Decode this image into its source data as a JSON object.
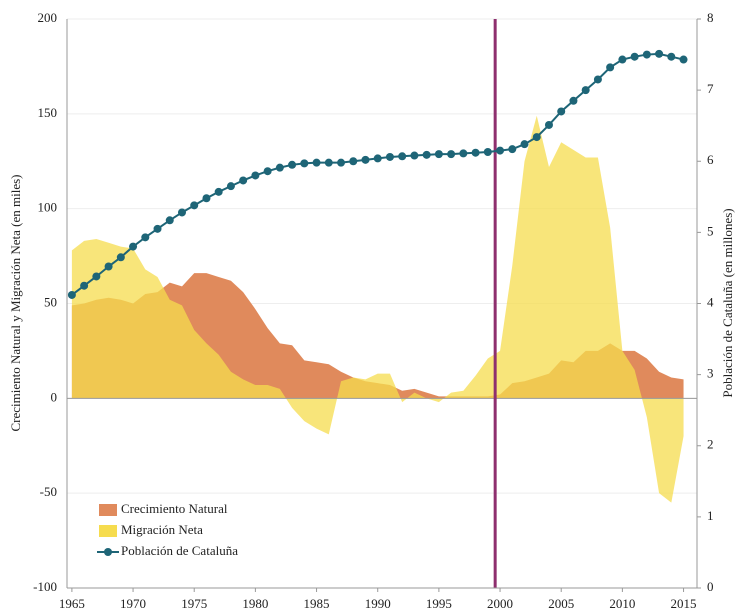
{
  "chart_data": {
    "type": "combo",
    "x": [
      1965,
      1966,
      1967,
      1968,
      1969,
      1970,
      1971,
      1972,
      1973,
      1974,
      1975,
      1976,
      1977,
      1978,
      1979,
      1980,
      1981,
      1982,
      1983,
      1984,
      1985,
      1986,
      1987,
      1988,
      1989,
      1990,
      1991,
      1992,
      1993,
      1994,
      1995,
      1996,
      1997,
      1998,
      1999,
      2000,
      2001,
      2002,
      2003,
      2004,
      2005,
      2006,
      2007,
      2008,
      2009,
      2010,
      2011,
      2012,
      2013,
      2014,
      2015
    ],
    "xlim": [
      1964.6,
      2016.1
    ],
    "xticks": [
      1965,
      1970,
      1975,
      1980,
      1985,
      1990,
      1995,
      2000,
      2005,
      2010,
      2015
    ],
    "ylim": [
      -100,
      200
    ],
    "yticks": [
      -100,
      -50,
      0,
      50,
      100,
      150,
      200
    ],
    "y2lim": [
      0,
      8
    ],
    "y2ticks": [
      0,
      1,
      2,
      3,
      4,
      5,
      6,
      7,
      8
    ],
    "ylabel": "Crecimiento Natural y Migración Neta (en miles)",
    "y2label": "Población de Cataluña (en millones)",
    "grid": true,
    "legend": "lower left",
    "vline": {
      "x": 1999.6,
      "color": "#8e2f6e"
    },
    "series": [
      {
        "name": "Crecimiento Natural",
        "type": "area",
        "color": "#e08a5c",
        "axis": "y",
        "values": [
          49,
          50,
          52,
          53,
          52,
          50,
          55,
          56,
          61,
          59,
          66,
          66,
          64,
          62,
          56,
          47,
          37,
          29,
          28,
          20,
          19,
          18,
          14,
          11,
          9,
          8,
          7,
          4,
          5,
          3,
          1,
          1,
          1,
          1,
          1,
          2,
          8,
          9,
          11,
          13,
          20,
          19,
          25,
          25,
          29,
          25,
          25,
          21,
          14,
          11,
          10
        ]
      },
      {
        "name": "Migración Neta",
        "type": "area",
        "color": "#f6dc4e",
        "axis": "y",
        "values": [
          78,
          83,
          84,
          82,
          80,
          79,
          68,
          64,
          52,
          49,
          36,
          29,
          23,
          14,
          10,
          7,
          7,
          5,
          -5,
          -12,
          -16,
          -19,
          9,
          11,
          10,
          13,
          13,
          -2,
          3,
          0,
          -2,
          3,
          4,
          12,
          21,
          25,
          70,
          125,
          149,
          122,
          135,
          131,
          127,
          127,
          90,
          25,
          15,
          -10,
          -50,
          -55,
          -20
        ]
      },
      {
        "name": "Población de Cataluña",
        "type": "line",
        "color": "#1e6577",
        "axis": "y2",
        "values": [
          4.12,
          4.25,
          4.38,
          4.52,
          4.65,
          4.8,
          4.93,
          5.05,
          5.17,
          5.28,
          5.38,
          5.48,
          5.57,
          5.65,
          5.73,
          5.8,
          5.86,
          5.91,
          5.95,
          5.97,
          5.98,
          5.98,
          5.98,
          6.0,
          6.02,
          6.04,
          6.06,
          6.07,
          6.08,
          6.09,
          6.1,
          6.1,
          6.11,
          6.12,
          6.13,
          6.15,
          6.17,
          6.24,
          6.34,
          6.51,
          6.7,
          6.85,
          7.0,
          7.15,
          7.32,
          7.43,
          7.47,
          7.5,
          7.51,
          7.47,
          7.43
        ]
      }
    ]
  }
}
